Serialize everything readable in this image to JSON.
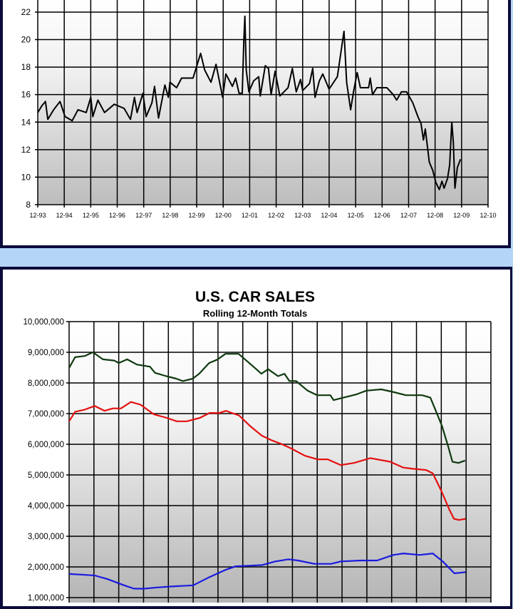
{
  "chart_data": [
    {
      "type": "line",
      "title": "",
      "xlabel": "",
      "ylabel": "",
      "x_ticks": [
        "12-93",
        "12-94",
        "12-95",
        "12-96",
        "12-97",
        "12-98",
        "12-99",
        "12-00",
        "12-01",
        "12-02",
        "12-03",
        "12-04",
        "12-05",
        "12-06",
        "12-07",
        "12-08",
        "12-09",
        "12-10"
      ],
      "xlim": [
        0,
        17
      ],
      "ylim": [
        8,
        22
      ],
      "y_ticks": [
        8,
        10,
        12,
        14,
        16,
        18,
        20,
        22
      ],
      "grid": true,
      "series": [
        {
          "color": "#000000",
          "points": [
            [
              0,
              14.7
            ],
            [
              0.16,
              15.2
            ],
            [
              0.29,
              15.5
            ],
            [
              0.38,
              14.2
            ],
            [
              0.6,
              14.9
            ],
            [
              0.84,
              15.5
            ],
            [
              1.03,
              14.4
            ],
            [
              1.3,
              14.1
            ],
            [
              1.52,
              14.9
            ],
            [
              1.83,
              14.7
            ],
            [
              2.0,
              15.8
            ],
            [
              2.08,
              14.4
            ],
            [
              2.27,
              15.6
            ],
            [
              2.52,
              14.7
            ],
            [
              2.89,
              15.3
            ],
            [
              3.26,
              15.0
            ],
            [
              3.5,
              14.2
            ],
            [
              3.65,
              15.8
            ],
            [
              3.75,
              14.7
            ],
            [
              3.97,
              16.1
            ],
            [
              4.09,
              14.4
            ],
            [
              4.31,
              15.4
            ],
            [
              4.41,
              16.6
            ],
            [
              4.56,
              14.3
            ],
            [
              4.8,
              16.7
            ],
            [
              4.93,
              15.8
            ],
            [
              4.99,
              16.9
            ],
            [
              5.24,
              16.5
            ],
            [
              5.43,
              17.2
            ],
            [
              5.86,
              17.2
            ],
            [
              5.99,
              18.0
            ],
            [
              6.15,
              19.0
            ],
            [
              6.3,
              17.8
            ],
            [
              6.54,
              16.9
            ],
            [
              6.73,
              18.2
            ],
            [
              6.98,
              15.8
            ],
            [
              7.1,
              17.5
            ],
            [
              7.35,
              16.6
            ],
            [
              7.47,
              17.2
            ],
            [
              7.6,
              16.1
            ],
            [
              7.72,
              16.1
            ],
            [
              7.78,
              19.9
            ],
            [
              7.82,
              21.7
            ],
            [
              7.87,
              17.8
            ],
            [
              7.97,
              16.2
            ],
            [
              8.15,
              17.0
            ],
            [
              8.34,
              17.3
            ],
            [
              8.4,
              15.9
            ],
            [
              8.59,
              18.1
            ],
            [
              8.71,
              17.9
            ],
            [
              8.81,
              16.0
            ],
            [
              8.96,
              17.7
            ],
            [
              9.14,
              15.9
            ],
            [
              9.45,
              16.5
            ],
            [
              9.61,
              17.9
            ],
            [
              9.76,
              16.2
            ],
            [
              9.92,
              17.1
            ],
            [
              10.0,
              16.3
            ],
            [
              10.26,
              16.8
            ],
            [
              10.38,
              17.9
            ],
            [
              10.47,
              15.8
            ],
            [
              10.63,
              17.0
            ],
            [
              10.76,
              17.5
            ],
            [
              11.0,
              16.4
            ],
            [
              11.31,
              17.3
            ],
            [
              11.5,
              19.8
            ],
            [
              11.56,
              20.6
            ],
            [
              11.66,
              16.9
            ],
            [
              11.81,
              14.9
            ],
            [
              11.93,
              16.3
            ],
            [
              12.06,
              17.6
            ],
            [
              12.18,
              16.5
            ],
            [
              12.49,
              16.5
            ],
            [
              12.55,
              17.2
            ],
            [
              12.64,
              16.0
            ],
            [
              12.8,
              16.5
            ],
            [
              12.99,
              16.5
            ],
            [
              13.18,
              16.5
            ],
            [
              13.42,
              16.0
            ],
            [
              13.55,
              15.6
            ],
            [
              13.73,
              16.2
            ],
            [
              13.92,
              16.2
            ],
            [
              14.16,
              15.4
            ],
            [
              14.35,
              14.4
            ],
            [
              14.47,
              13.9
            ],
            [
              14.56,
              12.7
            ],
            [
              14.63,
              13.5
            ],
            [
              14.78,
              11.1
            ],
            [
              14.91,
              10.5
            ],
            [
              15.03,
              9.6
            ],
            [
              15.16,
              9.1
            ],
            [
              15.26,
              9.7
            ],
            [
              15.34,
              9.2
            ],
            [
              15.47,
              9.9
            ],
            [
              15.55,
              10.9
            ],
            [
              15.63,
              14.0
            ],
            [
              15.69,
              12.5
            ],
            [
              15.75,
              9.2
            ],
            [
              15.84,
              10.7
            ],
            [
              15.96,
              11.3
            ]
          ]
        }
      ]
    },
    {
      "type": "line",
      "title": "U.S. CAR SALES",
      "subtitle": "Rolling 12-Month Totals",
      "xlabel": "",
      "ylabel": "",
      "xlim": [
        0,
        17
      ],
      "ylim": [
        1000000,
        10000000
      ],
      "y_ticks": [
        "1,000,000",
        "2,000,000",
        "3,000,000",
        "4,000,000",
        "5,000,000",
        "6,000,000",
        "7,000,000",
        "8,000,000",
        "9,000,000",
        "10,000,000"
      ],
      "y_unit_multiplier": 1000000,
      "grid": true,
      "series": [
        {
          "color": "#0f3a0f",
          "points": [
            [
              0,
              8.49
            ],
            [
              0.24,
              8.84
            ],
            [
              0.63,
              8.88
            ],
            [
              0.96,
              9.0
            ],
            [
              1.36,
              8.77
            ],
            [
              1.82,
              8.73
            ],
            [
              2.0,
              8.65
            ],
            [
              2.34,
              8.77
            ],
            [
              2.73,
              8.6
            ],
            [
              3.26,
              8.53
            ],
            [
              3.46,
              8.33
            ],
            [
              3.92,
              8.22
            ],
            [
              4.32,
              8.14
            ],
            [
              4.58,
              8.06
            ],
            [
              4.98,
              8.14
            ],
            [
              5.24,
              8.3
            ],
            [
              5.64,
              8.65
            ],
            [
              5.97,
              8.76
            ],
            [
              6.3,
              8.95
            ],
            [
              6.83,
              8.95
            ],
            [
              7.22,
              8.68
            ],
            [
              7.75,
              8.3
            ],
            [
              8.02,
              8.45
            ],
            [
              8.42,
              8.22
            ],
            [
              8.68,
              8.3
            ],
            [
              8.88,
              8.06
            ],
            [
              9.15,
              8.06
            ],
            [
              9.61,
              7.75
            ],
            [
              10.0,
              7.6
            ],
            [
              10.53,
              7.6
            ],
            [
              10.66,
              7.44
            ],
            [
              11.06,
              7.52
            ],
            [
              11.59,
              7.63
            ],
            [
              11.98,
              7.75
            ],
            [
              12.58,
              7.79
            ],
            [
              13.04,
              7.71
            ],
            [
              13.57,
              7.6
            ],
            [
              14.23,
              7.6
            ],
            [
              14.56,
              7.52
            ],
            [
              14.76,
              7.13
            ],
            [
              15.03,
              6.59
            ],
            [
              15.29,
              5.89
            ],
            [
              15.45,
              5.43
            ],
            [
              15.69,
              5.39
            ],
            [
              15.96,
              5.47
            ]
          ]
        },
        {
          "color": "#e51010",
          "points": [
            [
              0,
              6.75
            ],
            [
              0.24,
              7.06
            ],
            [
              0.63,
              7.13
            ],
            [
              1.03,
              7.25
            ],
            [
              1.43,
              7.09
            ],
            [
              1.76,
              7.17
            ],
            [
              2.09,
              7.17
            ],
            [
              2.49,
              7.38
            ],
            [
              2.88,
              7.29
            ],
            [
              3.41,
              6.98
            ],
            [
              3.94,
              6.86
            ],
            [
              4.34,
              6.75
            ],
            [
              4.74,
              6.75
            ],
            [
              5.27,
              6.86
            ],
            [
              5.66,
              7.02
            ],
            [
              6.06,
              7.02
            ],
            [
              6.32,
              7.09
            ],
            [
              6.85,
              6.94
            ],
            [
              7.3,
              6.59
            ],
            [
              7.77,
              6.28
            ],
            [
              8.16,
              6.13
            ],
            [
              8.56,
              6.01
            ],
            [
              8.96,
              5.86
            ],
            [
              9.49,
              5.63
            ],
            [
              10.0,
              5.51
            ],
            [
              10.42,
              5.51
            ],
            [
              10.95,
              5.32
            ],
            [
              11.48,
              5.39
            ],
            [
              12.14,
              5.55
            ],
            [
              12.94,
              5.43
            ],
            [
              13.47,
              5.24
            ],
            [
              13.86,
              5.2
            ],
            [
              14.39,
              5.16
            ],
            [
              14.66,
              5.05
            ],
            [
              14.99,
              4.5
            ],
            [
              15.32,
              3.88
            ],
            [
              15.51,
              3.57
            ],
            [
              15.71,
              3.53
            ],
            [
              15.98,
              3.57
            ]
          ]
        },
        {
          "color": "#1a1ae0",
          "points": [
            [
              0,
              1.77
            ],
            [
              0.5,
              1.75
            ],
            [
              1.03,
              1.72
            ],
            [
              1.56,
              1.6
            ],
            [
              2.22,
              1.4
            ],
            [
              2.62,
              1.29
            ],
            [
              3.02,
              1.29
            ],
            [
              3.55,
              1.33
            ],
            [
              4.08,
              1.36
            ],
            [
              5.0,
              1.4
            ],
            [
              5.66,
              1.67
            ],
            [
              6.32,
              1.91
            ],
            [
              6.72,
              2.02
            ],
            [
              7.25,
              2.04
            ],
            [
              7.78,
              2.06
            ],
            [
              8.31,
              2.18
            ],
            [
              8.84,
              2.25
            ],
            [
              9.23,
              2.21
            ],
            [
              9.89,
              2.1
            ],
            [
              10.56,
              2.1
            ],
            [
              10.95,
              2.18
            ],
            [
              11.75,
              2.21
            ],
            [
              12.41,
              2.21
            ],
            [
              13.07,
              2.39
            ],
            [
              13.47,
              2.44
            ],
            [
              14.13,
              2.39
            ],
            [
              14.66,
              2.44
            ],
            [
              15.06,
              2.18
            ],
            [
              15.53,
              1.79
            ],
            [
              15.98,
              1.83
            ]
          ]
        }
      ]
    }
  ]
}
